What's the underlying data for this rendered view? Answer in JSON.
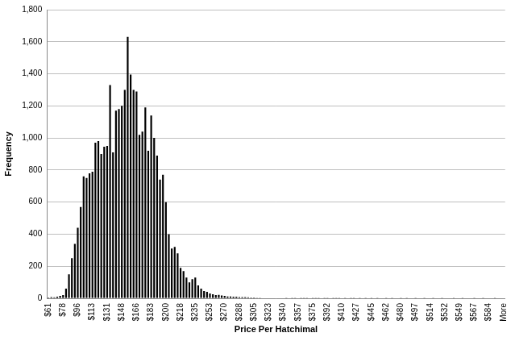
{
  "chart_data": {
    "type": "bar",
    "x_label": "Price Per Hatchimal",
    "y_label": "Frequency",
    "categories": [
      "$61",
      null,
      null,
      null,
      null,
      "$78",
      null,
      null,
      null,
      null,
      "$96",
      null,
      null,
      null,
      null,
      "$113",
      null,
      null,
      null,
      null,
      "$131",
      null,
      null,
      null,
      null,
      "$148",
      null,
      null,
      null,
      null,
      "$166",
      null,
      null,
      null,
      null,
      "$183",
      null,
      null,
      null,
      null,
      "$200",
      null,
      null,
      null,
      null,
      "$218",
      null,
      null,
      null,
      null,
      "$235",
      null,
      null,
      null,
      null,
      "$253",
      null,
      null,
      null,
      null,
      "$270",
      null,
      null,
      null,
      null,
      "$288",
      null,
      null,
      null,
      null,
      "$305",
      null,
      null,
      null,
      null,
      "$323",
      null,
      null,
      null,
      null,
      "$340",
      null,
      null,
      null,
      null,
      "$357",
      null,
      null,
      null,
      null,
      "$375",
      null,
      null,
      null,
      null,
      "$392",
      null,
      null,
      null,
      null,
      "$410",
      null,
      null,
      null,
      null,
      "$427",
      null,
      null,
      null,
      null,
      "$445",
      null,
      null,
      null,
      null,
      "$462",
      null,
      null,
      null,
      null,
      "$480",
      null,
      null,
      null,
      null,
      "$497",
      null,
      null,
      null,
      null,
      "$514",
      null,
      null,
      null,
      null,
      "$532",
      null,
      null,
      null,
      null,
      "$549",
      null,
      null,
      null,
      null,
      "$567",
      null,
      null,
      null,
      null,
      "$584",
      null,
      null,
      null,
      null,
      "More"
    ],
    "values": [
      5,
      8,
      6,
      10,
      15,
      20,
      60,
      150,
      250,
      340,
      440,
      570,
      760,
      750,
      780,
      790,
      970,
      980,
      900,
      945,
      950,
      1330,
      910,
      1170,
      1180,
      1200,
      1300,
      1630,
      1395,
      1300,
      1290,
      1020,
      1040,
      1190,
      920,
      1140,
      1000,
      890,
      740,
      770,
      600,
      400,
      310,
      320,
      280,
      190,
      170,
      130,
      100,
      120,
      130,
      80,
      60,
      45,
      40,
      30,
      25,
      20,
      22,
      18,
      15,
      12,
      12,
      10,
      10,
      8,
      8,
      7,
      6,
      5,
      5,
      4,
      4,
      3,
      3,
      3,
      2,
      2,
      2,
      2,
      2,
      1,
      2,
      1,
      1,
      2,
      1,
      1,
      1,
      2,
      1,
      1,
      1,
      0,
      1,
      1,
      0,
      1,
      1,
      1,
      0,
      1,
      0,
      1,
      1,
      0,
      1,
      0,
      1,
      0,
      1,
      0,
      1,
      0,
      0,
      1,
      0,
      1,
      0,
      0,
      1,
      0,
      1,
      0,
      0,
      1,
      0,
      0,
      1,
      0,
      0,
      1,
      0,
      0,
      1,
      0,
      0,
      0,
      1,
      0,
      0,
      1,
      0,
      0,
      0,
      1,
      0,
      0,
      1,
      0,
      0,
      0,
      1,
      0,
      0,
      3
    ],
    "color": "#000000",
    "ylim": [
      0,
      1800
    ],
    "yticks": [
      0,
      200,
      400,
      600,
      800,
      {
        "value": 1000,
        "label": "1,000"
      },
      {
        "value": 1200,
        "label": "1,200"
      },
      {
        "value": 1400,
        "label": "1,400"
      },
      {
        "value": 1600,
        "label": "1,600"
      },
      {
        "value": 1800,
        "label": "1,800"
      }
    ],
    "grid": true
  }
}
